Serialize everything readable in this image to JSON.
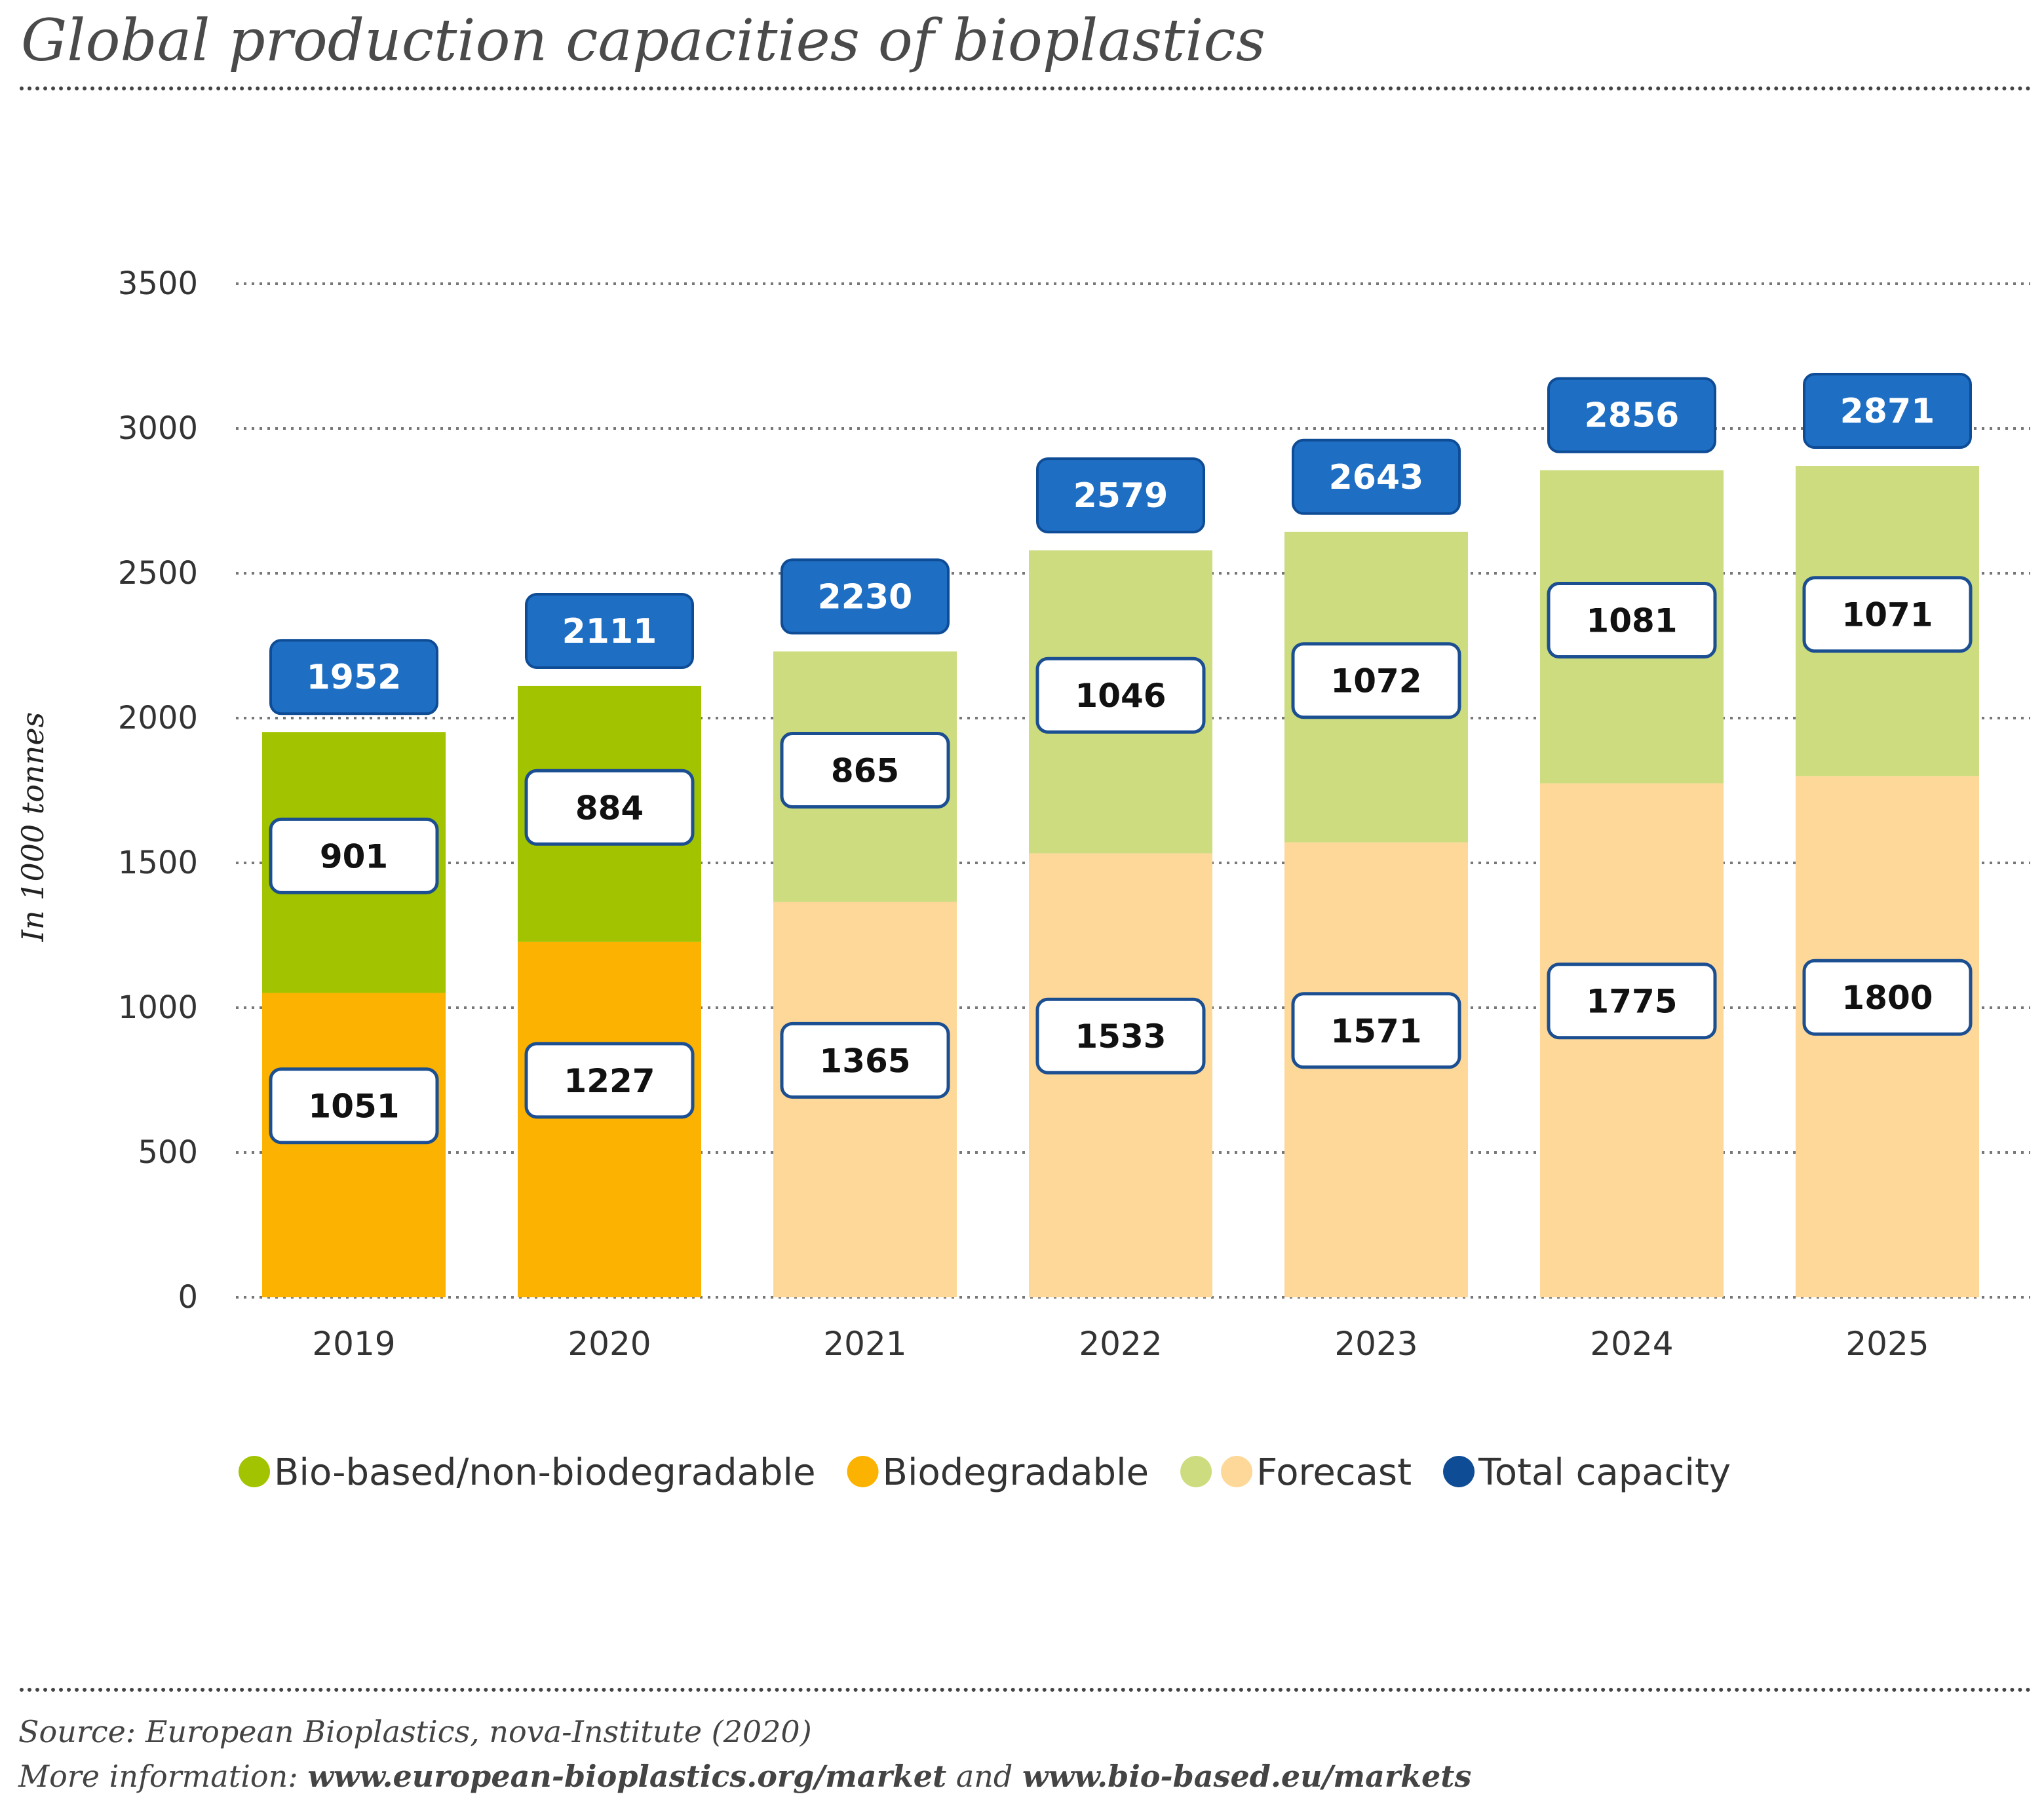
{
  "page": {
    "title": "Global production capacities of bioplastics",
    "source_line": "Source: European Bioplastics, nova-Institute (2020)",
    "more_info_prefix": "More information: ",
    "more_info_link1": "www.european-bioplastics.org/market",
    "more_info_and": " and ",
    "more_info_link2": "www.bio-based.eu/markets"
  },
  "colors": {
    "bio_based": "#a2c400",
    "biodegradable": "#fbb201",
    "bio_based_forecast": "#cddc7f",
    "biodegradable_forecast": "#fdd899",
    "total": "#1e6fc4",
    "total_border": "#0e4c96",
    "label_border": "#1b4f92"
  },
  "chart_data": {
    "type": "bar",
    "stacked": true,
    "categories": [
      "2019",
      "2020",
      "2021",
      "2022",
      "2023",
      "2024",
      "2025"
    ],
    "forecast_from_index": 2,
    "series": [
      {
        "name": "Biodegradable",
        "values": [
          1051,
          1227,
          1365,
          1533,
          1571,
          1775,
          1800
        ]
      },
      {
        "name": "Bio-based/non-biodegradable",
        "values": [
          901,
          884,
          865,
          1046,
          1072,
          1081,
          1071
        ]
      }
    ],
    "totals": [
      1952,
      2111,
      2230,
      2579,
      2643,
      2856,
      2871
    ],
    "ylabel": "In 1000 tonnes",
    "ylim": [
      0,
      3500
    ],
    "yticks": [
      0,
      500,
      1000,
      1500,
      2000,
      2500,
      3000,
      3500
    ],
    "grid": true,
    "legend": [
      {
        "label": "Bio-based/non-biodegradable",
        "swatches": [
          "bio_based"
        ]
      },
      {
        "label": "Biodegradable",
        "swatches": [
          "biodegradable"
        ]
      },
      {
        "label": "Forecast",
        "swatches": [
          "bio_based_forecast",
          "biodegradable_forecast"
        ]
      },
      {
        "label": "Total capacity",
        "swatches": [
          "total_border"
        ]
      }
    ],
    "legend_position": "bottom"
  }
}
